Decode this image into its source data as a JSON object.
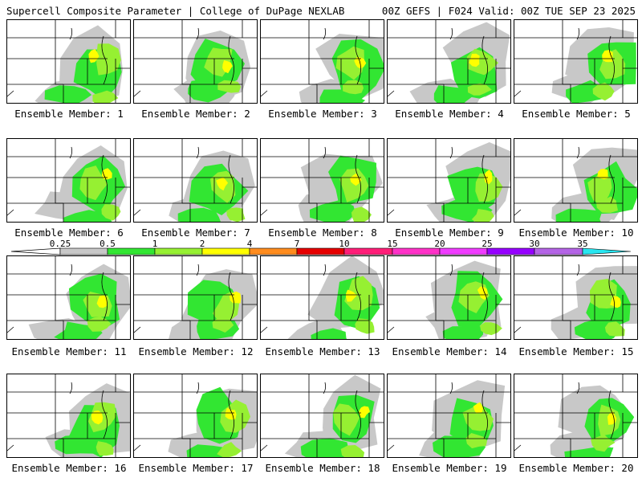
{
  "header": {
    "left_title": "Supercell Composite Parameter | College of DuPage NEXLAB",
    "right_title": "00Z GEFS | F024 Valid: 00Z TUE SEP 23 2025"
  },
  "panels": [
    {
      "label": "Ensemble Member: 1"
    },
    {
      "label": "Ensemble Member: 2"
    },
    {
      "label": "Ensemble Member: 3"
    },
    {
      "label": "Ensemble Member: 4"
    },
    {
      "label": "Ensemble Member: 5"
    },
    {
      "label": "Ensemble Member: 6"
    },
    {
      "label": "Ensemble Member: 7"
    },
    {
      "label": "Ensemble Member: 8"
    },
    {
      "label": "Ensemble Member: 9"
    },
    {
      "label": "Ensemble Member: 10"
    },
    {
      "label": "Ensemble Member: 11"
    },
    {
      "label": "Ensemble Member: 12"
    },
    {
      "label": "Ensemble Member: 13"
    },
    {
      "label": "Ensemble Member: 14"
    },
    {
      "label": "Ensemble Member: 15"
    },
    {
      "label": "Ensemble Member: 16"
    },
    {
      "label": "Ensemble Member: 17"
    },
    {
      "label": "Ensemble Member: 18"
    },
    {
      "label": "Ensemble Member: 19"
    },
    {
      "label": "Ensemble Member: 20"
    }
  ],
  "legend": {
    "ticks": [
      "0.25",
      "0.5",
      "1",
      "2",
      "4",
      "7",
      "10",
      "15",
      "20",
      "25",
      "30",
      "35"
    ],
    "colors": [
      "#c8c8c8",
      "#32e632",
      "#96f032",
      "#ffff00",
      "#ff8c1e",
      "#e60000",
      "#ff1e78",
      "#ff32c8",
      "#f03cff",
      "#9600ff",
      "#b464e6",
      "#28e6f0"
    ],
    "below_color": "#ffffff"
  },
  "field_colors": {
    "gray": "#c8c8c8",
    "green": "#32e632",
    "lightgreen": "#96f032",
    "yellow": "#ffff00"
  }
}
